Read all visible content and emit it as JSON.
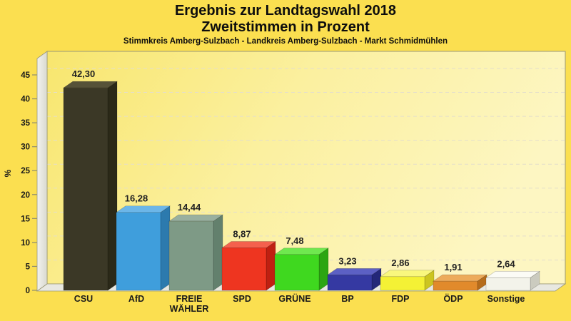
{
  "header": {
    "title_line1": "Ergebnis zur Landtagswahl 2018",
    "title_line2": "Zweitstimmen in Prozent",
    "subtitle": "Stimmkreis Amberg-Sulzbach - Landkreis Amberg-Sulzbach - Markt Schmidmühlen"
  },
  "chart_data": {
    "type": "bar",
    "title": "Ergebnis zur Landtagswahl 2018",
    "subtitle": "Zweitstimmen in Prozent",
    "note": "Stimmkreis Amberg-Sulzbach - Landkreis Amberg-Sulzbach - Markt Schmidmühlen",
    "xlabel": "",
    "ylabel": "%",
    "ylim": [
      0,
      45
    ],
    "yticks": [
      0,
      5,
      10,
      15,
      20,
      25,
      30,
      35,
      40,
      45
    ],
    "grid": "horizontal-dashed",
    "legend_position": "none",
    "style": "3d-column-chart",
    "categories": [
      "CSU",
      "AfD",
      "FREIE\nWÄHLER",
      "SPD",
      "GRÜNE",
      "BP",
      "FDP",
      "ÖDP",
      "Sonstige"
    ],
    "values": [
      42.3,
      16.28,
      14.44,
      8.87,
      7.48,
      3.23,
      2.86,
      1.91,
      2.64
    ],
    "value_labels": [
      "42,30",
      "16,28",
      "14,44",
      "8,87",
      "7,48",
      "3,23",
      "2,86",
      "1,91",
      "2,64"
    ],
    "bar_colors": [
      {
        "party": "CSU",
        "front": "#3b3826",
        "top": "#565238",
        "side": "#2b2918"
      },
      {
        "party": "AfD",
        "front": "#3f9edc",
        "top": "#6cb6e8",
        "side": "#2c7aae"
      },
      {
        "party": "FREIE WÄHLER",
        "front": "#7e9a86",
        "top": "#99b09f",
        "side": "#63806d"
      },
      {
        "party": "SPD",
        "front": "#ee3520",
        "top": "#f4614d",
        "side": "#bf2011"
      },
      {
        "party": "GRÜNE",
        "front": "#3fd81f",
        "top": "#6fe84f",
        "side": "#2ca512"
      },
      {
        "party": "BP",
        "front": "#3539a2",
        "top": "#5c60c4",
        "side": "#232779"
      },
      {
        "party": "FDP",
        "front": "#f4f135",
        "top": "#f9f77e",
        "side": "#ccc521"
      },
      {
        "party": "ÖDP",
        "front": "#e18a2b",
        "top": "#edab5b",
        "side": "#b56c1b"
      },
      {
        "party": "Sonstige",
        "front": "#f3f3ea",
        "top": "#fbfbf5",
        "side": "#cbcbbf"
      }
    ]
  },
  "colors": {
    "background": "#fbdf50",
    "wall_gradient": [
      "#f8e66e",
      "#fbf0a0",
      "#fdf6c2"
    ],
    "side_wall_light": "#f2f2ed",
    "side_wall_dark": "#d9d9d0",
    "floor": "#e8e8e1",
    "gridline": "#e4decb",
    "axis_line": "#9a9878",
    "tick": "#8f8d6e",
    "text": "#1a1a1a"
  }
}
